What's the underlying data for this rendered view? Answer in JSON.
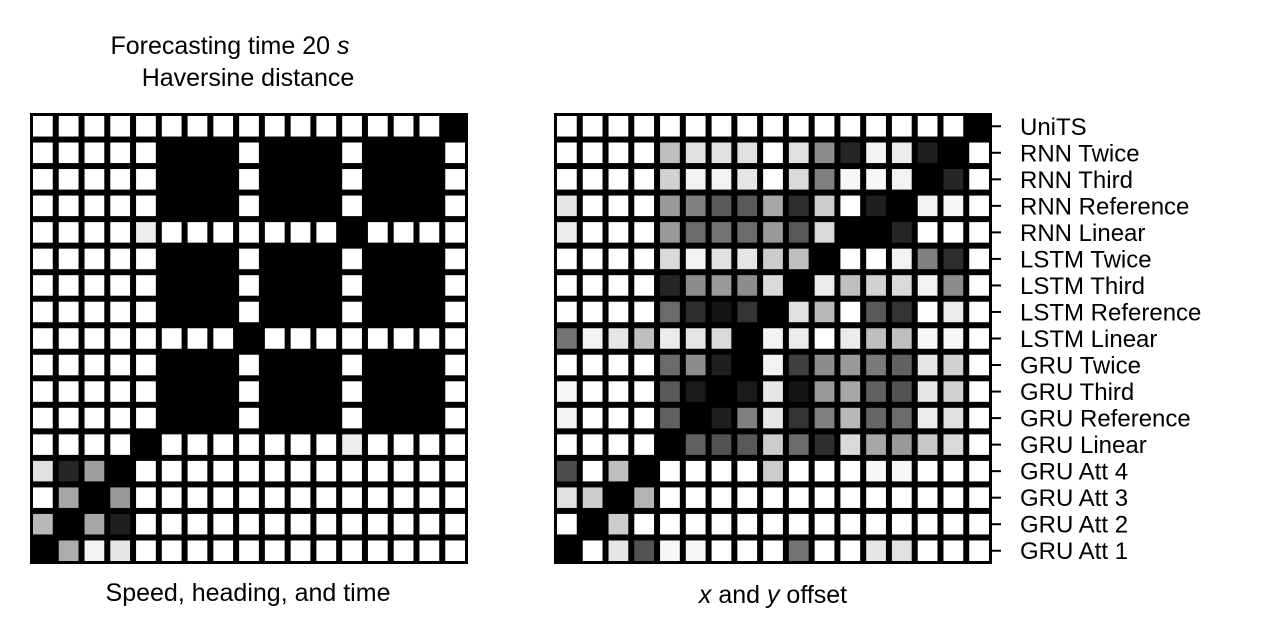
{
  "figure": {
    "title_line1": "Forecasting time 20 ",
    "title_unit": "s",
    "title_line2": "Haversine distance"
  },
  "colors": {
    "cell_zero": "#000000",
    "cell_one": "#ffffff",
    "grid": "#000000"
  },
  "chart_data": [
    {
      "type": "heatmap",
      "title": "Forecasting time 20 s / Haversine distance",
      "xlabel": "Speed, heading, and time",
      "ylabel": "",
      "colormap": "greyscale (0 = black, 1 = white)",
      "value_range": [
        0,
        1
      ],
      "rows": [
        "UniTS",
        "RNN Twice",
        "RNN Third",
        "RNN Reference",
        "RNN Linear",
        "LSTM Twice",
        "LSTM Third",
        "LSTM Reference",
        "LSTM Linear",
        "GRU Twice",
        "GRU Third",
        "GRU Reference",
        "GRU Linear",
        "GRU Att 4",
        "GRU Att 3",
        "GRU Att 2",
        "GRU Att 1"
      ],
      "values": [
        [
          1,
          1,
          1,
          1,
          1,
          1,
          1,
          1,
          1,
          1,
          1,
          1,
          1,
          1,
          1,
          1,
          0
        ],
        [
          1,
          1,
          1,
          1,
          1,
          0,
          0,
          0,
          1,
          0,
          0,
          0,
          1,
          0,
          0,
          0,
          1
        ],
        [
          1,
          1,
          1,
          1,
          1,
          0,
          0,
          0,
          1,
          0,
          0,
          0,
          1,
          0,
          0,
          0,
          1
        ],
        [
          1,
          1,
          1,
          1,
          1,
          0,
          0,
          0,
          1,
          0,
          0,
          0,
          1,
          0,
          0,
          0,
          1
        ],
        [
          1,
          1,
          1,
          1,
          0.93,
          1,
          1,
          1,
          1,
          1,
          1,
          1,
          0,
          1,
          1,
          1,
          1
        ],
        [
          1,
          1,
          1,
          1,
          1,
          0,
          0,
          0,
          1,
          0,
          0,
          0,
          1,
          0,
          0,
          0,
          1
        ],
        [
          1,
          1,
          1,
          1,
          1,
          0,
          0,
          0,
          1,
          0,
          0,
          0,
          1,
          0,
          0,
          0,
          1
        ],
        [
          1,
          1,
          1,
          1,
          1,
          0,
          0,
          0,
          1,
          0,
          0,
          0,
          1,
          0,
          0,
          0,
          1
        ],
        [
          1,
          1,
          1,
          1,
          1,
          1,
          1,
          1,
          0,
          1,
          1,
          1,
          1,
          1,
          1,
          1,
          1
        ],
        [
          1,
          1,
          1,
          1,
          1,
          0,
          0,
          0,
          1,
          0,
          0,
          0,
          1,
          0,
          0,
          0,
          1
        ],
        [
          1,
          1,
          1,
          1,
          1,
          0,
          0,
          0,
          1,
          0,
          0,
          0,
          1,
          0,
          0,
          0,
          1
        ],
        [
          1,
          1,
          1,
          1,
          1,
          0,
          0,
          0,
          1,
          0,
          0,
          0,
          1,
          0,
          0,
          0,
          1
        ],
        [
          1,
          1,
          1,
          1,
          0,
          1,
          1,
          1,
          1,
          1,
          1,
          1,
          0.93,
          1,
          1,
          1,
          1
        ],
        [
          0.88,
          0.15,
          0.62,
          0,
          1,
          1,
          1,
          1,
          1,
          1,
          1,
          1,
          1,
          1,
          1,
          1,
          1
        ],
        [
          1,
          0.65,
          0,
          0.6,
          1,
          1,
          1,
          1,
          1,
          1,
          1,
          1,
          1,
          1,
          1,
          1,
          1
        ],
        [
          0.72,
          0,
          0.65,
          0.12,
          1,
          1,
          1,
          1,
          1,
          1,
          1,
          1,
          1,
          1,
          1,
          1,
          1
        ],
        [
          0,
          0.68,
          0.95,
          0.9,
          1,
          1,
          1,
          1,
          1,
          1,
          1,
          1,
          1,
          1,
          1,
          1,
          1
        ]
      ]
    },
    {
      "type": "heatmap",
      "title": "",
      "xlabel_pre": "",
      "xlabel_x": "x",
      "xlabel_mid": " and ",
      "xlabel_y": "y",
      "xlabel_post": " offset",
      "ylabel": "",
      "colormap": "greyscale (0 = black, 1 = white)",
      "value_range": [
        0,
        1
      ],
      "rows": [
        "UniTS",
        "RNN Twice",
        "RNN Third",
        "RNN Reference",
        "RNN Linear",
        "LSTM Twice",
        "LSTM Third",
        "LSTM Reference",
        "LSTM Linear",
        "GRU Twice",
        "GRU Third",
        "GRU Reference",
        "GRU Linear",
        "GRU Att 4",
        "GRU Att 3",
        "GRU Att 2",
        "GRU Att 1"
      ],
      "values": [
        [
          1,
          1,
          1,
          1,
          1,
          1,
          1,
          1,
          1,
          1,
          1,
          1,
          1,
          1,
          1,
          1,
          0
        ],
        [
          1,
          1,
          1,
          1,
          0.75,
          0.88,
          0.88,
          0.88,
          1,
          0.88,
          0.55,
          0.15,
          0.95,
          0.92,
          0.12,
          0,
          1
        ],
        [
          1,
          1,
          1,
          1,
          0.82,
          0.95,
          0.95,
          0.9,
          1,
          0.85,
          0.5,
          0.97,
          0.97,
          0.95,
          0,
          0.15,
          1
        ],
        [
          0.9,
          1,
          1,
          1,
          0.6,
          0.5,
          0.35,
          0.35,
          0.65,
          0.18,
          0.8,
          1,
          0.12,
          0,
          0.95,
          0.97,
          1
        ],
        [
          0.92,
          1,
          1,
          1,
          0.6,
          0.42,
          0.45,
          0.42,
          0.6,
          0.35,
          0.85,
          0,
          0,
          0.15,
          1,
          1,
          1
        ],
        [
          1,
          1,
          1,
          1,
          0.85,
          0.95,
          0.88,
          0.9,
          0.8,
          0.75,
          0,
          1,
          1,
          0.95,
          0.5,
          0.18,
          1
        ],
        [
          1,
          1,
          1,
          1,
          0.15,
          0.55,
          0.6,
          0.55,
          0.85,
          0,
          0.92,
          0.75,
          0.82,
          0.85,
          0.95,
          0.55,
          1
        ],
        [
          1,
          1,
          1,
          1,
          0.42,
          0.18,
          0.08,
          0.2,
          0,
          0.88,
          0.72,
          1,
          0.35,
          0.2,
          1,
          0.92,
          1
        ],
        [
          0.45,
          0.95,
          0.9,
          0.75,
          0.92,
          0.9,
          0.85,
          0,
          0.95,
          0.92,
          1,
          0.92,
          0.75,
          0.75,
          0.97,
          0.97,
          1
        ],
        [
          1,
          1,
          1,
          1,
          0.42,
          0.55,
          0.12,
          0,
          0.95,
          0.25,
          0.55,
          0.6,
          0.48,
          0.38,
          0.9,
          0.82,
          1
        ],
        [
          0.97,
          1,
          1,
          1,
          0.35,
          0.1,
          0,
          0.1,
          0.9,
          0.08,
          0.6,
          0.65,
          0.38,
          0.32,
          0.9,
          0.82,
          1
        ],
        [
          0.95,
          1,
          1,
          1,
          0.38,
          0,
          0.12,
          0.5,
          0.9,
          0.2,
          0.5,
          0.72,
          0.4,
          0.42,
          0.92,
          0.88,
          1
        ],
        [
          1,
          1,
          1,
          1,
          0,
          0.38,
          0.32,
          0.35,
          0.8,
          0.42,
          0.18,
          0.85,
          0.65,
          0.6,
          0.78,
          0.85,
          1
        ],
        [
          0.3,
          1,
          0.75,
          0,
          1,
          1,
          1,
          1,
          0.8,
          1,
          1,
          1,
          0.97,
          0.97,
          1,
          1,
          1
        ],
        [
          0.88,
          0.8,
          0,
          0.7,
          1,
          1,
          1,
          1,
          1,
          1,
          1,
          1,
          1,
          1,
          1,
          1,
          1
        ],
        [
          1,
          0,
          0.8,
          1,
          1,
          1,
          1,
          1,
          1,
          1,
          1,
          1,
          1,
          1,
          1,
          1,
          1
        ],
        [
          0,
          1,
          0.9,
          0.32,
          0.97,
          0.97,
          1,
          1,
          1,
          0.45,
          1,
          1,
          0.9,
          0.88,
          1,
          1,
          1
        ]
      ]
    }
  ]
}
